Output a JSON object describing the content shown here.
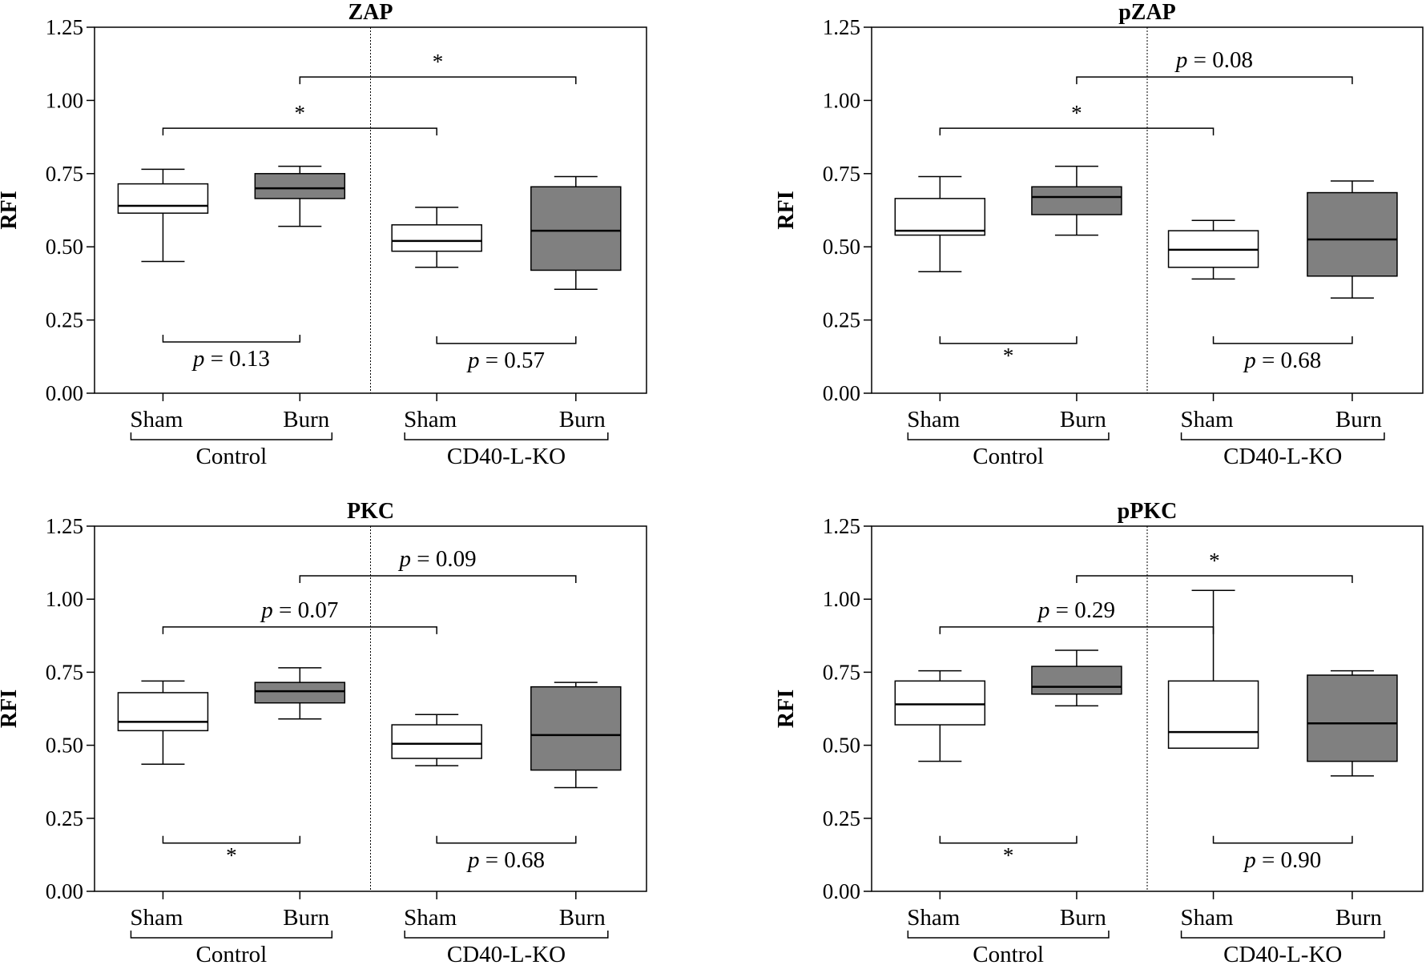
{
  "chart_data": [
    {
      "type": "box",
      "title": "ZAP",
      "ylabel": "RFI",
      "ylim": [
        0,
        1.25
      ],
      "yticks": [
        "0.00",
        "0.25",
        "0.50",
        "0.75",
        "1.00",
        "1.25"
      ],
      "categories": [
        "Sham",
        "Burn",
        "Sham",
        "Burn"
      ],
      "groups": [
        "Control",
        "CD40-L-KO"
      ],
      "boxes": [
        {
          "min": 0.45,
          "q1": 0.615,
          "median": 0.64,
          "q3": 0.715,
          "max": 0.765,
          "fill": "#ffffff"
        },
        {
          "min": 0.57,
          "q1": 0.665,
          "median": 0.7,
          "q3": 0.75,
          "max": 0.775,
          "fill": "#808080"
        },
        {
          "min": 0.43,
          "q1": 0.485,
          "median": 0.52,
          "q3": 0.575,
          "max": 0.635,
          "fill": "#ffffff"
        },
        {
          "min": 0.355,
          "q1": 0.42,
          "median": 0.555,
          "q3": 0.705,
          "max": 0.74,
          "fill": "#808080"
        }
      ],
      "comparisons": [
        {
          "from": 0,
          "to": 1,
          "level": 0.175,
          "text": "p = 0.13",
          "position": "below"
        },
        {
          "from": 2,
          "to": 3,
          "level": 0.17,
          "text": "p = 0.57",
          "position": "below"
        },
        {
          "from": 0,
          "to": 2,
          "level": 0.905,
          "text": "*",
          "position": "above"
        },
        {
          "from": 1,
          "to": 3,
          "level": 1.08,
          "text": "*",
          "position": "above"
        }
      ]
    },
    {
      "type": "box",
      "title": "pZAP",
      "ylabel": "RFI",
      "ylim": [
        0,
        1.25
      ],
      "yticks": [
        "0.00",
        "0.25",
        "0.50",
        "0.75",
        "1.00",
        "1.25"
      ],
      "categories": [
        "Sham",
        "Burn",
        "Sham",
        "Burn"
      ],
      "groups": [
        "Control",
        "CD40-L-KO"
      ],
      "boxes": [
        {
          "min": 0.415,
          "q1": 0.54,
          "median": 0.555,
          "q3": 0.665,
          "max": 0.74,
          "fill": "#ffffff"
        },
        {
          "min": 0.54,
          "q1": 0.61,
          "median": 0.67,
          "q3": 0.705,
          "max": 0.775,
          "fill": "#808080"
        },
        {
          "min": 0.39,
          "q1": 0.43,
          "median": 0.49,
          "q3": 0.555,
          "max": 0.59,
          "fill": "#ffffff"
        },
        {
          "min": 0.325,
          "q1": 0.4,
          "median": 0.525,
          "q3": 0.685,
          "max": 0.725,
          "fill": "#808080"
        }
      ],
      "comparisons": [
        {
          "from": 0,
          "to": 1,
          "level": 0.17,
          "text": "*",
          "position": "below"
        },
        {
          "from": 2,
          "to": 3,
          "level": 0.17,
          "text": "p = 0.68",
          "position": "below"
        },
        {
          "from": 0,
          "to": 2,
          "level": 0.905,
          "text": "*",
          "position": "above"
        },
        {
          "from": 1,
          "to": 3,
          "level": 1.08,
          "text": "p = 0.08",
          "position": "above"
        }
      ]
    },
    {
      "type": "box",
      "title": "PKC",
      "ylabel": "RFI",
      "ylim": [
        0,
        1.25
      ],
      "yticks": [
        "0.00",
        "0.25",
        "0.50",
        "0.75",
        "1.00",
        "1.25"
      ],
      "categories": [
        "Sham",
        "Burn",
        "Sham",
        "Burn"
      ],
      "groups": [
        "Control",
        "CD40-L-KO"
      ],
      "boxes": [
        {
          "min": 0.435,
          "q1": 0.55,
          "median": 0.58,
          "q3": 0.68,
          "max": 0.72,
          "fill": "#ffffff"
        },
        {
          "min": 0.59,
          "q1": 0.645,
          "median": 0.685,
          "q3": 0.715,
          "max": 0.765,
          "fill": "#808080"
        },
        {
          "min": 0.43,
          "q1": 0.455,
          "median": 0.505,
          "q3": 0.57,
          "max": 0.605,
          "fill": "#ffffff"
        },
        {
          "min": 0.355,
          "q1": 0.415,
          "median": 0.535,
          "q3": 0.7,
          "max": 0.715,
          "fill": "#808080"
        }
      ],
      "comparisons": [
        {
          "from": 0,
          "to": 1,
          "level": 0.165,
          "text": "*",
          "position": "below"
        },
        {
          "from": 2,
          "to": 3,
          "level": 0.165,
          "text": "p = 0.68",
          "position": "below"
        },
        {
          "from": 0,
          "to": 2,
          "level": 0.905,
          "text": "p = 0.07",
          "position": "above"
        },
        {
          "from": 1,
          "to": 3,
          "level": 1.08,
          "text": "p = 0.09",
          "position": "above"
        }
      ]
    },
    {
      "type": "box",
      "title": "pPKC",
      "ylabel": "RFI",
      "ylim": [
        0,
        1.25
      ],
      "yticks": [
        "0.00",
        "0.25",
        "0.50",
        "0.75",
        "1.00",
        "1.25"
      ],
      "categories": [
        "Sham",
        "Burn",
        "Sham",
        "Burn"
      ],
      "groups": [
        "Control",
        "CD40-L-KO"
      ],
      "boxes": [
        {
          "min": 0.445,
          "q1": 0.57,
          "median": 0.64,
          "q3": 0.72,
          "max": 0.755,
          "fill": "#ffffff"
        },
        {
          "min": 0.635,
          "q1": 0.675,
          "median": 0.7,
          "q3": 0.77,
          "max": 0.825,
          "fill": "#808080"
        },
        {
          "min": 0.49,
          "q1": 0.49,
          "median": 0.545,
          "q3": 0.72,
          "max": 1.03,
          "fill": "#ffffff"
        },
        {
          "min": 0.395,
          "q1": 0.445,
          "median": 0.575,
          "q3": 0.74,
          "max": 0.755,
          "fill": "#808080"
        }
      ],
      "comparisons": [
        {
          "from": 0,
          "to": 1,
          "level": 0.165,
          "text": "*",
          "position": "below"
        },
        {
          "from": 2,
          "to": 3,
          "level": 0.165,
          "text": "p = 0.90",
          "position": "below"
        },
        {
          "from": 0,
          "to": 2,
          "level": 0.905,
          "text": "p = 0.29",
          "position": "above"
        },
        {
          "from": 1,
          "to": 3,
          "level": 1.08,
          "text": "*",
          "position": "above"
        }
      ]
    }
  ]
}
